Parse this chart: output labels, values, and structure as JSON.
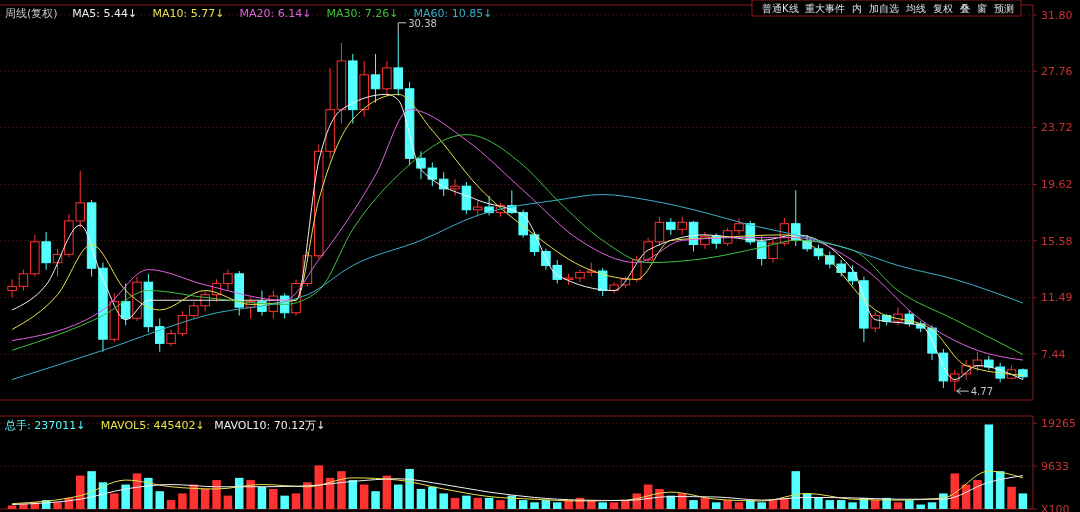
{
  "chart_data": [
    {
      "type": "candlestick",
      "title": "周线(复权)",
      "categories": [
        null,
        null,
        null,
        null,
        null,
        null,
        null,
        null,
        null,
        null,
        null,
        null,
        null,
        null,
        null,
        null,
        null,
        null,
        null,
        null,
        null,
        null,
        null,
        null,
        null,
        null,
        null,
        null,
        null,
        null,
        null,
        null,
        null,
        null,
        null,
        null,
        null,
        null,
        null,
        null,
        null,
        null,
        null,
        null,
        null,
        null,
        null,
        null,
        null,
        null,
        null,
        null,
        null,
        null,
        null,
        null,
        null,
        null,
        null,
        null,
        null,
        null,
        null,
        null,
        null,
        null,
        null,
        null,
        null,
        null,
        null,
        null,
        null,
        null,
        null,
        null,
        null,
        null,
        null,
        null,
        null,
        null,
        null,
        null,
        null,
        null,
        null,
        null,
        null,
        null
      ],
      "ohlc": [
        [
          12.0,
          12.8,
          11.5,
          12.3
        ],
        [
          12.3,
          13.5,
          12.0,
          13.2
        ],
        [
          13.2,
          16.0,
          13.0,
          15.5
        ],
        [
          15.5,
          16.2,
          13.5,
          14.0
        ],
        [
          14.0,
          15.0,
          13.0,
          14.6
        ],
        [
          14.6,
          17.5,
          14.4,
          17.0
        ],
        [
          17.0,
          20.6,
          16.5,
          18.3
        ],
        [
          18.3,
          18.5,
          13.0,
          13.6
        ],
        [
          13.6,
          14.0,
          7.6,
          8.5
        ],
        [
          8.5,
          11.8,
          8.3,
          11.2
        ],
        [
          11.2,
          12.5,
          9.5,
          10.0
        ],
        [
          10.0,
          13.0,
          9.8,
          12.6
        ],
        [
          12.6,
          13.2,
          9.0,
          9.4
        ],
        [
          9.4,
          10.0,
          7.6,
          8.2
        ],
        [
          8.2,
          9.2,
          8.0,
          8.9
        ],
        [
          8.9,
          10.5,
          8.7,
          10.2
        ],
        [
          10.2,
          11.2,
          10.0,
          10.9
        ],
        [
          10.9,
          12.0,
          10.5,
          11.7
        ],
        [
          11.7,
          12.8,
          11.2,
          12.5
        ],
        [
          12.5,
          13.5,
          12.0,
          13.2
        ],
        [
          13.2,
          13.4,
          10.2,
          10.8
        ],
        [
          10.8,
          11.5,
          10.0,
          11.2
        ],
        [
          11.2,
          12.0,
          10.2,
          10.5
        ],
        [
          10.5,
          12.0,
          10.0,
          11.6
        ],
        [
          11.6,
          11.8,
          10.0,
          10.4
        ],
        [
          10.4,
          12.8,
          10.2,
          12.5
        ],
        [
          12.5,
          14.8,
          12.3,
          14.5
        ],
        [
          14.5,
          22.5,
          14.3,
          22.0
        ],
        [
          22.0,
          28.0,
          21.5,
          25.0
        ],
        [
          25.0,
          29.8,
          24.0,
          28.5
        ],
        [
          28.5,
          29.0,
          24.0,
          25.0
        ],
        [
          25.0,
          28.5,
          24.5,
          27.5
        ],
        [
          27.5,
          29.0,
          25.5,
          26.5
        ],
        [
          26.5,
          28.5,
          26.0,
          28.0
        ],
        [
          28.0,
          30.38,
          26.0,
          26.5
        ],
        [
          26.5,
          27.0,
          21.0,
          21.5
        ],
        [
          21.5,
          22.0,
          20.0,
          20.8
        ],
        [
          20.8,
          21.2,
          19.5,
          20.0
        ],
        [
          20.0,
          20.5,
          18.8,
          19.3
        ],
        [
          19.3,
          20.0,
          18.8,
          19.5
        ],
        [
          19.5,
          19.8,
          17.5,
          17.8
        ],
        [
          17.8,
          18.5,
          17.3,
          18.0
        ],
        [
          18.0,
          18.8,
          17.4,
          17.6
        ],
        [
          17.6,
          18.3,
          17.3,
          18.1
        ],
        [
          18.1,
          19.2,
          17.5,
          17.6
        ],
        [
          17.6,
          17.8,
          15.8,
          16.0
        ],
        [
          16.0,
          16.2,
          14.5,
          14.8
        ],
        [
          14.8,
          15.0,
          13.5,
          13.8
        ],
        [
          13.8,
          14.2,
          12.5,
          12.8
        ],
        [
          12.8,
          13.2,
          12.4,
          12.9
        ],
        [
          12.9,
          13.5,
          12.6,
          13.3
        ],
        [
          13.3,
          14.0,
          13.0,
          13.4
        ],
        [
          13.4,
          13.6,
          11.6,
          12.0
        ],
        [
          12.0,
          12.6,
          11.8,
          12.4
        ],
        [
          12.4,
          13.0,
          12.2,
          12.8
        ],
        [
          12.8,
          14.5,
          12.6,
          14.2
        ],
        [
          14.2,
          15.8,
          14.0,
          15.5
        ],
        [
          15.5,
          17.3,
          15.2,
          16.9
        ],
        [
          16.9,
          17.2,
          16.0,
          16.4
        ],
        [
          16.4,
          17.3,
          16.0,
          16.9
        ],
        [
          16.9,
          17.0,
          14.8,
          15.3
        ],
        [
          15.3,
          16.2,
          15.0,
          15.9
        ],
        [
          15.9,
          16.1,
          15.0,
          15.4
        ],
        [
          15.4,
          16.5,
          15.2,
          16.3
        ],
        [
          16.3,
          17.2,
          16.0,
          16.8
        ],
        [
          16.8,
          17.0,
          15.3,
          15.5
        ],
        [
          15.5,
          15.9,
          13.8,
          14.3
        ],
        [
          14.3,
          15.6,
          14.0,
          15.4
        ],
        [
          15.4,
          17.2,
          15.2,
          16.8
        ],
        [
          16.8,
          19.2,
          15.2,
          15.6
        ],
        [
          15.6,
          16.0,
          14.8,
          15.0
        ],
        [
          15.0,
          15.3,
          14.2,
          14.5
        ],
        [
          14.5,
          14.8,
          13.6,
          13.9
        ],
        [
          13.9,
          14.2,
          13.0,
          13.3
        ],
        [
          13.3,
          13.8,
          12.4,
          12.7
        ],
        [
          12.7,
          13.0,
          8.3,
          9.3
        ],
        [
          9.3,
          10.5,
          9.0,
          10.2
        ],
        [
          10.2,
          10.3,
          9.5,
          9.8
        ],
        [
          9.8,
          10.8,
          9.5,
          10.3
        ],
        [
          10.3,
          10.6,
          9.4,
          9.6
        ],
        [
          9.6,
          9.8,
          9.0,
          9.3
        ],
        [
          9.3,
          9.5,
          7.0,
          7.5
        ],
        [
          7.5,
          7.8,
          5.0,
          5.5
        ],
        [
          5.5,
          6.3,
          4.77,
          6.0
        ],
        [
          6.0,
          7.0,
          5.6,
          6.6
        ],
        [
          6.6,
          7.6,
          6.2,
          7.0
        ],
        [
          7.0,
          7.3,
          6.3,
          6.5
        ],
        [
          6.5,
          6.8,
          5.4,
          5.7
        ],
        [
          5.7,
          6.6,
          5.6,
          6.3
        ],
        [
          6.3,
          6.4,
          5.6,
          5.8
        ]
      ],
      "colors": [
        "#ff3232",
        "#ff3232",
        "#ff3232",
        "#54ffff",
        "#ff3232",
        "#ff3232",
        "#ff3232",
        "#54ffff",
        "#54ffff",
        "#ff3232",
        "#54ffff",
        "#ff3232",
        "#54ffff",
        "#54ffff",
        "#ff3232",
        "#ff3232",
        "#ff3232",
        "#ff3232",
        "#ff3232",
        "#ff3232",
        "#54ffff",
        "#ff3232",
        "#54ffff",
        "#ff3232",
        "#54ffff",
        "#ff3232",
        "#ff3232",
        "#ff3232",
        "#ff3232",
        "#ff3232",
        "#54ffff",
        "#ff3232",
        "#54ffff",
        "#ff3232",
        "#54ffff",
        "#54ffff",
        "#54ffff",
        "#54ffff",
        "#54ffff",
        "#ff3232",
        "#54ffff",
        "#ff3232",
        "#54ffff",
        "#ff3232",
        "#54ffff",
        "#54ffff",
        "#54ffff",
        "#54ffff",
        "#54ffff",
        "#ff3232",
        "#ff3232",
        "#ff3232",
        "#54ffff",
        "#ff3232",
        "#ff3232",
        "#ff3232",
        "#ff3232",
        "#ff3232",
        "#54ffff",
        "#ff3232",
        "#54ffff",
        "#ff3232",
        "#54ffff",
        "#ff3232",
        "#ff3232",
        "#54ffff",
        "#54ffff",
        "#ff3232",
        "#ff3232",
        "#54ffff",
        "#54ffff",
        "#54ffff",
        "#54ffff",
        "#54ffff",
        "#54ffff",
        "#54ffff",
        "#ff3232",
        "#54ffff",
        "#ff3232",
        "#54ffff",
        "#54ffff",
        "#54ffff",
        "#54ffff",
        "#ff3232",
        "#ff3232",
        "#ff3232",
        "#54ffff",
        "#54ffff",
        "#ff3232",
        "#54ffff"
      ],
      "series": [
        {
          "name": "MA5: 5.44↓",
          "type": "line",
          "color": "#f0f0f0",
          "values": [
            10.6,
            null,
            null,
            12.4,
            null,
            null,
            16.7,
            null,
            12.8,
            null,
            9.9,
            null,
            11.3,
            null,
            null,
            null,
            null,
            11.3,
            null,
            null,
            null,
            11.3,
            null,
            null,
            null,
            11.3,
            null,
            21.3,
            null,
            25.0,
            null,
            null,
            null,
            26.1,
            25.7,
            null,
            20.7,
            null,
            null,
            null,
            null,
            18.5,
            null,
            null,
            null,
            17.4,
            null,
            null,
            13.1,
            null,
            null,
            null,
            null,
            12.0,
            null,
            null,
            14.9,
            null,
            null,
            null,
            null,
            16.0,
            null,
            null,
            null,
            null,
            15.6,
            null,
            null,
            16.0,
            null,
            null,
            null,
            null,
            13.5,
            null,
            9.9,
            null,
            null,
            null,
            9.5,
            null,
            null,
            5.6,
            null,
            6.6,
            null,
            null,
            null,
            5.6
          ]
        },
        {
          "name": "MA10: 5.77↓",
          "type": "line",
          "color": "#e8e050",
          "values": [
            9.2,
            null,
            null,
            null,
            11.7,
            null,
            null,
            15.3,
            null,
            null,
            12.0,
            null,
            null,
            10.6,
            null,
            null,
            null,
            12.0,
            null,
            null,
            null,
            11.0,
            null,
            null,
            null,
            11.3,
            null,
            18.5,
            null,
            null,
            24.3,
            null,
            null,
            null,
            26.1,
            null,
            null,
            23.5,
            null,
            null,
            null,
            19.5,
            null,
            null,
            null,
            null,
            16.0,
            null,
            null,
            null,
            13.8,
            null,
            null,
            null,
            null,
            12.8,
            null,
            null,
            15.6,
            null,
            null,
            null,
            15.8,
            null,
            null,
            null,
            null,
            null,
            16.0,
            null,
            null,
            14.9,
            null,
            null,
            null,
            null,
            10.6,
            null,
            null,
            null,
            null,
            9.2,
            null,
            null,
            6.6,
            null,
            null,
            null,
            null,
            5.9
          ]
        },
        {
          "name": "MA20: 6.14↓",
          "type": "line",
          "color": "#e060e0",
          "values": [
            8.4,
            null,
            null,
            null,
            null,
            null,
            null,
            null,
            10.6,
            null,
            null,
            null,
            13.5,
            null,
            null,
            null,
            null,
            12.4,
            null,
            null,
            null,
            null,
            null,
            null,
            11.3,
            null,
            null,
            14.2,
            null,
            null,
            null,
            null,
            20.3,
            null,
            null,
            25.0,
            null,
            null,
            null,
            null,
            22.8,
            null,
            null,
            null,
            null,
            19.2,
            null,
            null,
            null,
            null,
            15.6,
            null,
            null,
            null,
            null,
            14.0,
            null,
            null,
            null,
            15.6,
            null,
            null,
            null,
            null,
            15.8,
            null,
            null,
            null,
            null,
            15.8,
            null,
            null,
            null,
            null,
            null,
            13.6,
            null,
            null,
            null,
            null,
            9.9,
            null,
            null,
            null,
            null,
            7.7,
            null,
            null,
            null,
            7.0
          ]
        },
        {
          "name": "MA30: 7.26↓",
          "type": "line",
          "color": "#40c040",
          "values": [
            7.7,
            null,
            null,
            null,
            null,
            null,
            null,
            null,
            10.2,
            null,
            null,
            null,
            12.0,
            null,
            null,
            null,
            null,
            11.5,
            null,
            null,
            null,
            null,
            null,
            null,
            11.0,
            null,
            null,
            12.0,
            null,
            null,
            16.4,
            null,
            null,
            null,
            20.3,
            null,
            null,
            null,
            null,
            null,
            23.2,
            null,
            null,
            null,
            null,
            21.0,
            null,
            null,
            18.5,
            null,
            null,
            null,
            15.6,
            null,
            null,
            null,
            14.0,
            null,
            null,
            null,
            null,
            14.3,
            null,
            null,
            null,
            null,
            15.1,
            null,
            null,
            15.6,
            null,
            null,
            null,
            null,
            14.9,
            null,
            null,
            null,
            12.0,
            null,
            null,
            null,
            null,
            9.9,
            null,
            null,
            null,
            null,
            null,
            7.4
          ]
        },
        {
          "name": "MA60: 10.85↓",
          "type": "line",
          "color": "#3ab0c8",
          "values": [
            5.6,
            null,
            null,
            null,
            null,
            null,
            null,
            null,
            7.7,
            null,
            null,
            null,
            null,
            null,
            null,
            null,
            null,
            10.2,
            null,
            null,
            null,
            null,
            null,
            null,
            null,
            null,
            11.7,
            null,
            null,
            null,
            13.8,
            null,
            null,
            null,
            null,
            null,
            15.6,
            null,
            null,
            null,
            null,
            17.4,
            null,
            null,
            null,
            null,
            null,
            null,
            18.5,
            null,
            null,
            null,
            18.9,
            null,
            null,
            null,
            18.5,
            null,
            null,
            null,
            null,
            17.6,
            null,
            null,
            null,
            16.7,
            null,
            null,
            null,
            16.0,
            null,
            null,
            null,
            null,
            14.9,
            null,
            null,
            null,
            13.8,
            null,
            null,
            null,
            null,
            12.8,
            null,
            null,
            null,
            null,
            null,
            11.1
          ]
        }
      ],
      "ylim": [
        4.13,
        32.52
      ],
      "yticks": [
        {
          "value": 31.8,
          "label": "31.80"
        },
        27.76,
        23.72,
        19.62,
        15.58,
        11.49,
        7.44
      ],
      "grid": "y",
      "legend": "top left",
      "tick_labels": "y",
      "annotations": [
        "30.38",
        "4.77",
        "普通K线",
        "重大事件",
        "内",
        "加自选",
        "均线",
        "复权",
        "叠",
        "窗",
        "预测"
      ]
    },
    {
      "type": "bar",
      "categories": [
        null,
        null,
        null,
        null,
        null,
        null,
        null,
        null,
        null,
        null,
        null,
        null,
        null,
        null,
        null,
        null,
        null,
        null,
        null,
        null,
        null,
        null,
        null,
        null,
        null,
        null,
        null,
        null,
        null,
        null,
        null,
        null,
        null,
        null,
        null,
        null,
        null,
        null,
        null,
        null,
        null,
        null,
        null,
        null,
        null,
        null,
        null,
        null,
        null,
        null,
        null,
        null,
        null,
        null,
        null,
        null,
        null,
        null,
        null,
        null,
        null,
        null,
        null,
        null,
        null,
        null,
        null,
        null,
        null,
        null,
        null,
        null,
        null,
        null,
        null,
        null,
        null,
        null,
        null,
        null,
        null,
        null,
        null,
        null,
        null,
        null,
        null,
        null,
        null,
        null
      ],
      "series": [
        {
          "name": "总手: 237011↓",
          "type": "bar",
          "color": "#54ffff",
          "values": [
            800,
            1200,
            1500,
            2000,
            1500,
            2500,
            7500,
            8500,
            6000,
            3500,
            5500,
            8000,
            7000,
            4000,
            2000,
            3500,
            5500,
            4500,
            6500,
            3000,
            7000,
            6500,
            5000,
            4500,
            3000,
            3500,
            6000,
            9800,
            7000,
            8500,
            6500,
            5500,
            4000,
            7500,
            5500,
            9000,
            4500,
            5000,
            3500,
            2500,
            3000,
            2500,
            2500,
            2000,
            3000,
            2000,
            1500,
            2000,
            1500,
            2000,
            2500,
            2000,
            1500,
            1500,
            2000,
            3500,
            5500,
            4500,
            3000,
            3500,
            2000,
            2500,
            1500,
            2000,
            1500,
            2000,
            1500,
            2000,
            2500,
            8500,
            3500,
            2500,
            2000,
            2000,
            1500,
            2500,
            2000,
            2500,
            1500,
            2000,
            1000,
            1500,
            3500,
            8000,
            5500,
            6500,
            19000,
            8500,
            5000,
            3500
          ],
          "colors": [
            "#ff3232",
            "#ff3232",
            "#ff3232",
            "#54ffff",
            "#ff3232",
            "#ff3232",
            "#ff3232",
            "#54ffff",
            "#54ffff",
            "#ff3232",
            "#54ffff",
            "#ff3232",
            "#54ffff",
            "#54ffff",
            "#ff3232",
            "#ff3232",
            "#ff3232",
            "#ff3232",
            "#ff3232",
            "#ff3232",
            "#54ffff",
            "#ff3232",
            "#54ffff",
            "#ff3232",
            "#54ffff",
            "#ff3232",
            "#ff3232",
            "#ff3232",
            "#ff3232",
            "#ff3232",
            "#54ffff",
            "#ff3232",
            "#54ffff",
            "#ff3232",
            "#54ffff",
            "#54ffff",
            "#54ffff",
            "#54ffff",
            "#54ffff",
            "#ff3232",
            "#54ffff",
            "#ff3232",
            "#54ffff",
            "#ff3232",
            "#54ffff",
            "#54ffff",
            "#54ffff",
            "#54ffff",
            "#54ffff",
            "#ff3232",
            "#ff3232",
            "#ff3232",
            "#54ffff",
            "#ff3232",
            "#ff3232",
            "#ff3232",
            "#ff3232",
            "#ff3232",
            "#54ffff",
            "#ff3232",
            "#54ffff",
            "#ff3232",
            "#54ffff",
            "#ff3232",
            "#ff3232",
            "#54ffff",
            "#54ffff",
            "#ff3232",
            "#ff3232",
            "#54ffff",
            "#54ffff",
            "#54ffff",
            "#54ffff",
            "#54ffff",
            "#54ffff",
            "#54ffff",
            "#ff3232",
            "#54ffff",
            "#ff3232",
            "#54ffff",
            "#54ffff",
            "#54ffff",
            "#54ffff",
            "#ff3232",
            "#ff3232",
            "#ff3232",
            "#54ffff",
            "#54ffff",
            "#ff3232",
            "#54ffff"
          ]
        },
        {
          "name": "MAVOL5: 445402↓",
          "type": "line",
          "color": "#e8e050",
          "values": [
            1200,
            null,
            null,
            null,
            null,
            null,
            3000,
            null,
            null,
            null,
            6500,
            null,
            null,
            null,
            5000,
            null,
            null,
            null,
            4500,
            null,
            null,
            null,
            5500,
            null,
            null,
            null,
            5000,
            null,
            null,
            null,
            7000,
            null,
            null,
            null,
            6500,
            null,
            null,
            null,
            4500,
            null,
            null,
            null,
            2800,
            null,
            null,
            null,
            2200,
            null,
            null,
            null,
            1800,
            null,
            null,
            null,
            2000,
            null,
            null,
            null,
            3800,
            null,
            null,
            null,
            2200,
            null,
            null,
            null,
            1800,
            null,
            null,
            null,
            3500,
            null,
            null,
            null,
            2200,
            null,
            null,
            null,
            2000,
            null,
            null,
            null,
            2500,
            null,
            null,
            null,
            8500,
            null,
            null,
            7000
          ]
        },
        {
          "name": "MAVOL10: 70.12万↓",
          "type": "line",
          "color": "#f0f0f0",
          "values": [
            1000,
            null,
            null,
            null,
            null,
            null,
            2200,
            null,
            null,
            null,
            4500,
            null,
            null,
            null,
            5500,
            null,
            null,
            null,
            5000,
            null,
            null,
            null,
            5000,
            null,
            null,
            null,
            5200,
            null,
            null,
            null,
            6200,
            null,
            null,
            null,
            6800,
            null,
            null,
            null,
            5500,
            null,
            null,
            null,
            3800,
            null,
            null,
            null,
            2600,
            null,
            null,
            null,
            2000,
            null,
            null,
            null,
            1900,
            null,
            null,
            null,
            2800,
            null,
            null,
            null,
            2700,
            null,
            null,
            null,
            2000,
            null,
            null,
            null,
            2600,
            null,
            null,
            null,
            2500,
            null,
            null,
            null,
            2200,
            null,
            null,
            null,
            2200,
            null,
            null,
            null,
            6000,
            null,
            null,
            7500
          ]
        }
      ],
      "ylim": [
        0,
        20900
      ],
      "yticks": [
        {
          "value": 0,
          "label": "X100"
        },
        9633,
        19265
      ],
      "grid": "y",
      "legend": "top left",
      "tick_labels": "y"
    }
  ]
}
